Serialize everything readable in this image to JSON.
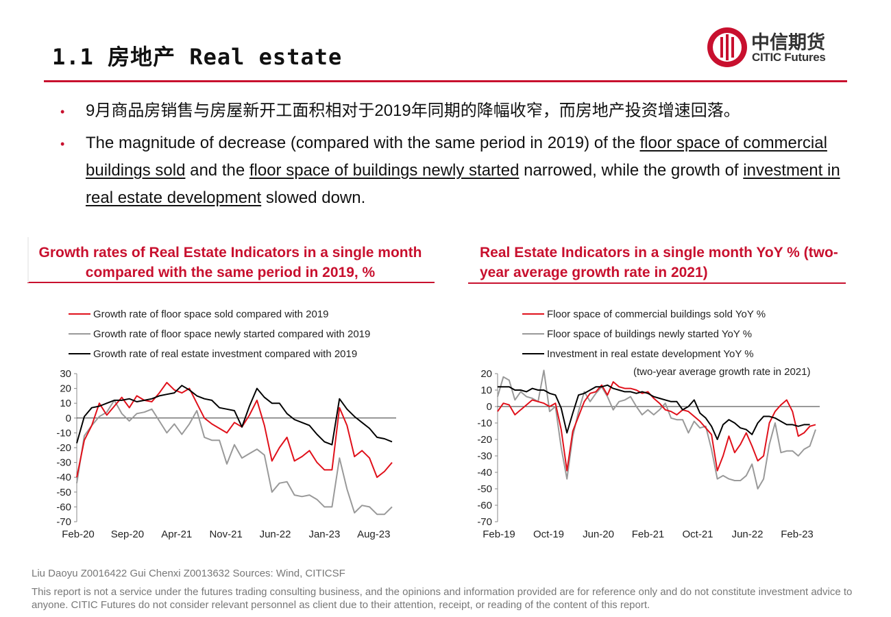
{
  "header": {
    "title": "1.1 房地产  Real estate",
    "logo_cn": "中信期货",
    "logo_en": "CITIC Futures"
  },
  "bullets": {
    "cn": "9月商品房销售与房屋新开工面积相对于2019年同期的降幅收窄，而房地产投资增速回落。",
    "en_1": "The magnitude of decrease (compared with the same period in 2019) of the ",
    "en_link_1": "floor space of commercial buildings sold",
    "en_2": " and the ",
    "en_link_2": "floor space of buildings newly started",
    "en_3": " narrowed, while the growth of ",
    "en_link_3": "investment in real estate development",
    "en_4": " slowed down."
  },
  "colors": {
    "accent": "#c8102e",
    "red": "#e0101a",
    "gray": "#999999",
    "black": "#000000"
  },
  "footer": {
    "authors": "Liu Daoyu Z0016422  Gui Chenxi Z0013632    Sources: Wind, CITICSF",
    "disclaimer": "This report is not a service under the futures trading consulting business, and the opinions and information provided are for reference only and do not constitute investment advice to anyone. CITIC Futures do not consider relevant personnel as client due to their attention, receipt, or reading of the content of this report."
  },
  "chart_data": [
    {
      "type": "line",
      "title": "Growth rates of Real Estate Indicators in a single month compared with the same period in 2019, %",
      "ylim": [
        -70,
        30
      ],
      "yticks": [
        30,
        20,
        10,
        0,
        -10,
        -20,
        -30,
        -40,
        -50,
        -60,
        -70
      ],
      "xticks": [
        "Feb-20",
        "Sep-20",
        "Apr-21",
        "Nov-21",
        "Jun-22",
        "Jan-23",
        "Aug-23"
      ],
      "legend_position": "top",
      "series": [
        {
          "name": "Growth rate of floor space sold compared with 2019",
          "color": "red",
          "values": [
            -40,
            -15,
            -5,
            10,
            2,
            8,
            14,
            7,
            15,
            12,
            11,
            17,
            24,
            19,
            17,
            20,
            10,
            0,
            -4,
            -7,
            -10,
            -3,
            -6,
            2,
            12,
            -5,
            -29,
            -20,
            -13,
            -29,
            -26,
            -22,
            -30,
            -35,
            -35,
            7,
            -5,
            -26,
            -22,
            -27,
            -40,
            -36,
            -30
          ]
        },
        {
          "name": "Growth rate of floor space newly started compared with 2019",
          "color": "gray",
          "values": [
            -44,
            -12,
            -5,
            1,
            4,
            12,
            3,
            -2,
            3,
            4,
            6,
            -2,
            -10,
            -4,
            -11,
            -4,
            5,
            -13,
            -15,
            -15,
            -31,
            -18,
            -27,
            -24,
            -21,
            -25,
            -50,
            -44,
            -43,
            -52,
            -53,
            -52,
            -55,
            -60,
            -60,
            -27,
            -48,
            -64,
            -59,
            -60,
            -65,
            -65,
            -60
          ]
        },
        {
          "name": "Growth rate of real estate investment compared with 2019",
          "color": "black",
          "values": [
            -17,
            1,
            7,
            8,
            10,
            12,
            12,
            13,
            11,
            12,
            13,
            15,
            16,
            17,
            22,
            19,
            15,
            13,
            12,
            7,
            6,
            5,
            -6,
            8,
            20,
            14,
            10,
            10,
            3,
            -1,
            -3,
            -5,
            -11,
            -16,
            -18,
            13,
            6,
            1,
            -3,
            -7,
            -13,
            -14,
            -16
          ]
        }
      ]
    },
    {
      "type": "line",
      "title": "Real Estate Indicators in a single month YoY % (two-year average growth rate in 2021)",
      "annotation": "(two-year average growth rate in 2021)",
      "ylim": [
        -70,
        20
      ],
      "yticks": [
        20,
        10,
        0,
        -10,
        -20,
        -30,
        -40,
        -50,
        -60,
        -70
      ],
      "xticks": [
        "Feb-19",
        "Oct-19",
        "Jun-20",
        "Feb-21",
        "Oct-21",
        "Jun-22",
        "Feb-23"
      ],
      "legend_position": "top",
      "series": [
        {
          "name": "Floor space of commercial buildings sold  YoY %",
          "color": "red",
          "values": [
            -3,
            2,
            1,
            -5,
            -2,
            1,
            4,
            3,
            2,
            0,
            2,
            -14,
            -39,
            -15,
            -6,
            3,
            8,
            9,
            13,
            7,
            15,
            12,
            11,
            11,
            10,
            8,
            9,
            5,
            2,
            -2,
            -3,
            -5,
            -2,
            -3,
            -6,
            -9,
            -13,
            -17,
            -39,
            -30,
            -18,
            -28,
            -23,
            -16,
            -24,
            -33,
            -30,
            -10,
            -3,
            1,
            4,
            -3,
            -18,
            -16,
            -12,
            -11
          ]
        },
        {
          "name": "Floor space of buildings newly started  YoY %",
          "color": "gray",
          "values": [
            6,
            18,
            16,
            4,
            9,
            6,
            5,
            3,
            22,
            -3,
            0,
            -25,
            -44,
            -18,
            -3,
            9,
            3,
            8,
            12,
            6,
            -2,
            3,
            4,
            6,
            0,
            -5,
            -2,
            -5,
            -2,
            2,
            -7,
            -8,
            -8,
            -16,
            -9,
            -13,
            -12,
            -26,
            -44,
            -42,
            -44,
            -45,
            -45,
            -42,
            -35,
            -50,
            -44,
            -23,
            -10,
            -28,
            -27,
            -27,
            -30,
            -26,
            -24,
            -14
          ]
        },
        {
          "name": "Investment in real estate development  YoY %",
          "color": "black",
          "values": [
            12,
            12,
            12,
            10,
            10,
            9,
            11,
            10,
            10,
            8,
            7,
            -1,
            -16,
            -4,
            7,
            8,
            10,
            12,
            12,
            13,
            11,
            10,
            9,
            9,
            8,
            9,
            8,
            6,
            5,
            4,
            3,
            3,
            -2,
            0,
            4,
            -4,
            -7,
            -12,
            -20,
            -11,
            -8,
            -10,
            -13,
            -14,
            -17,
            -10,
            -6,
            -6,
            -7,
            -9,
            -11,
            -11,
            -12,
            -11,
            -11
          ]
        }
      ]
    }
  ]
}
